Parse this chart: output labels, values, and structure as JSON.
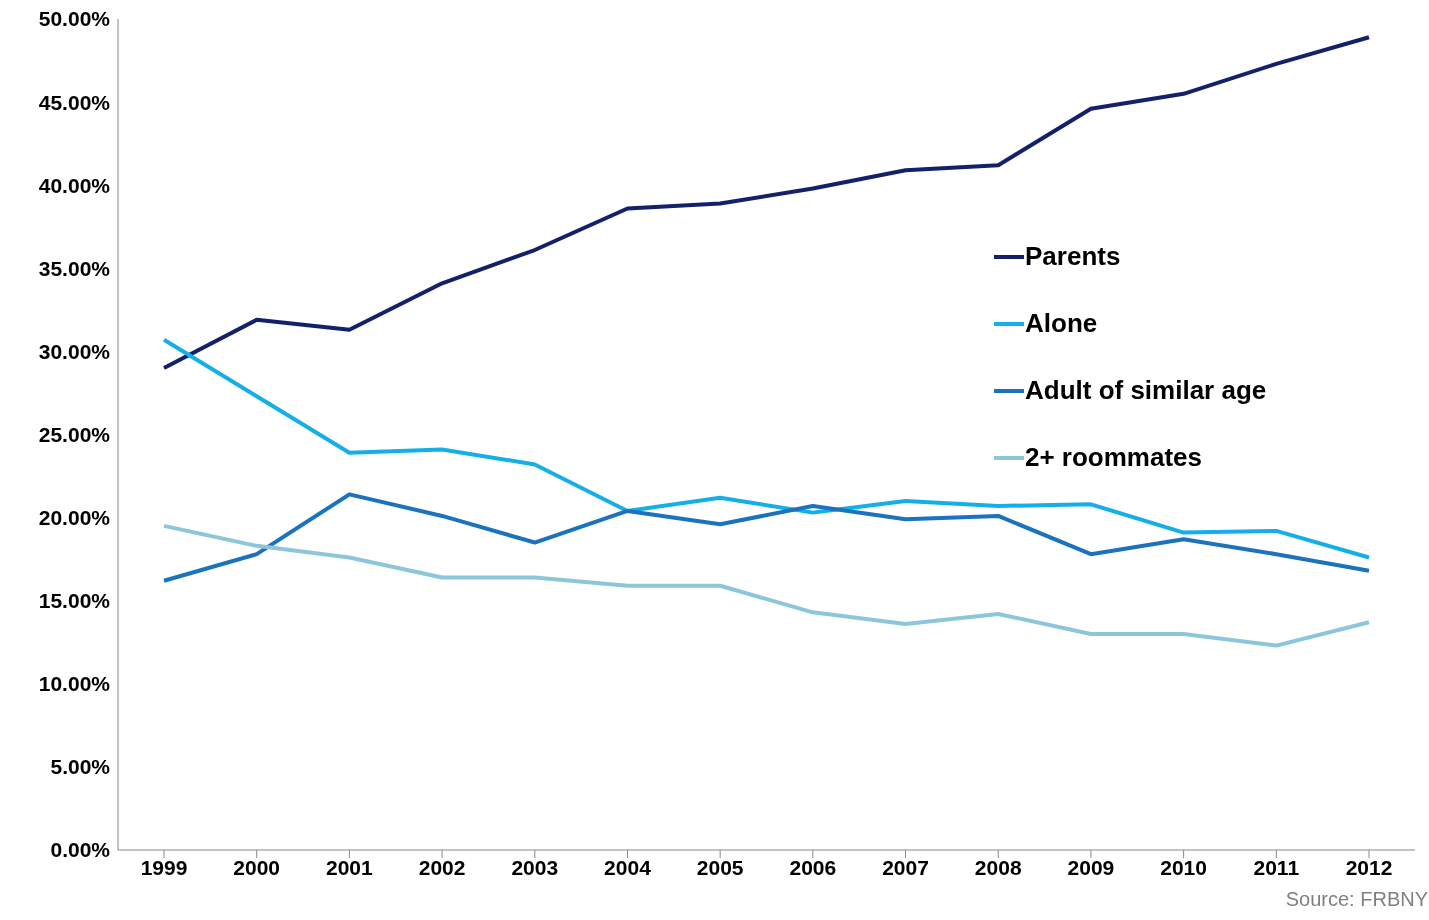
{
  "chart_data": {
    "type": "line",
    "categories": [
      "1999",
      "2000",
      "2001",
      "2002",
      "2003",
      "2004",
      "2005",
      "2006",
      "2007",
      "2008",
      "2009",
      "2010",
      "2011",
      "2012"
    ],
    "series": [
      {
        "name": "Parents",
        "color": "#13206a",
        "values": [
          29.0,
          31.9,
          31.3,
          34.1,
          36.1,
          38.6,
          38.9,
          39.8,
          40.9,
          41.2,
          44.6,
          45.5,
          47.3,
          48.9
        ]
      },
      {
        "name": "Alone",
        "color": "#14aee8",
        "values": [
          30.7,
          27.3,
          23.9,
          24.1,
          23.2,
          20.4,
          21.2,
          20.3,
          21.0,
          20.7,
          20.8,
          19.1,
          19.2,
          17.6
        ]
      },
      {
        "name": "Adult of similar age",
        "color": "#1b72bd",
        "values": [
          16.2,
          17.8,
          21.4,
          20.1,
          18.5,
          20.4,
          19.6,
          20.7,
          19.9,
          20.1,
          17.8,
          18.7,
          17.8,
          16.8
        ]
      },
      {
        "name": "2+ roommates",
        "color": "#8cc6da",
        "values": [
          19.5,
          18.3,
          17.6,
          16.4,
          16.4,
          15.9,
          15.9,
          14.3,
          13.6,
          14.2,
          13.0,
          13.0,
          12.3,
          13.7
        ]
      }
    ],
    "ylim": [
      0,
      50
    ],
    "yticks": [
      {
        "value": 0,
        "label": "0.00%"
      },
      {
        "value": 5,
        "label": "5.00%"
      },
      {
        "value": 10,
        "label": "10.00%"
      },
      {
        "value": 15,
        "label": "15.00%"
      },
      {
        "value": 20,
        "label": "20.00%"
      },
      {
        "value": 25,
        "label": "25.00%"
      },
      {
        "value": 30,
        "label": "30.00%"
      },
      {
        "value": 35,
        "label": "35.00%"
      },
      {
        "value": 40,
        "label": "40.00%"
      },
      {
        "value": 45,
        "label": "45.00%"
      },
      {
        "value": 50,
        "label": "50.00%"
      }
    ],
    "grid": false,
    "legend": "right",
    "marker": "none",
    "line_style": "solid",
    "annotations": [
      "Source: FRBNY"
    ]
  }
}
